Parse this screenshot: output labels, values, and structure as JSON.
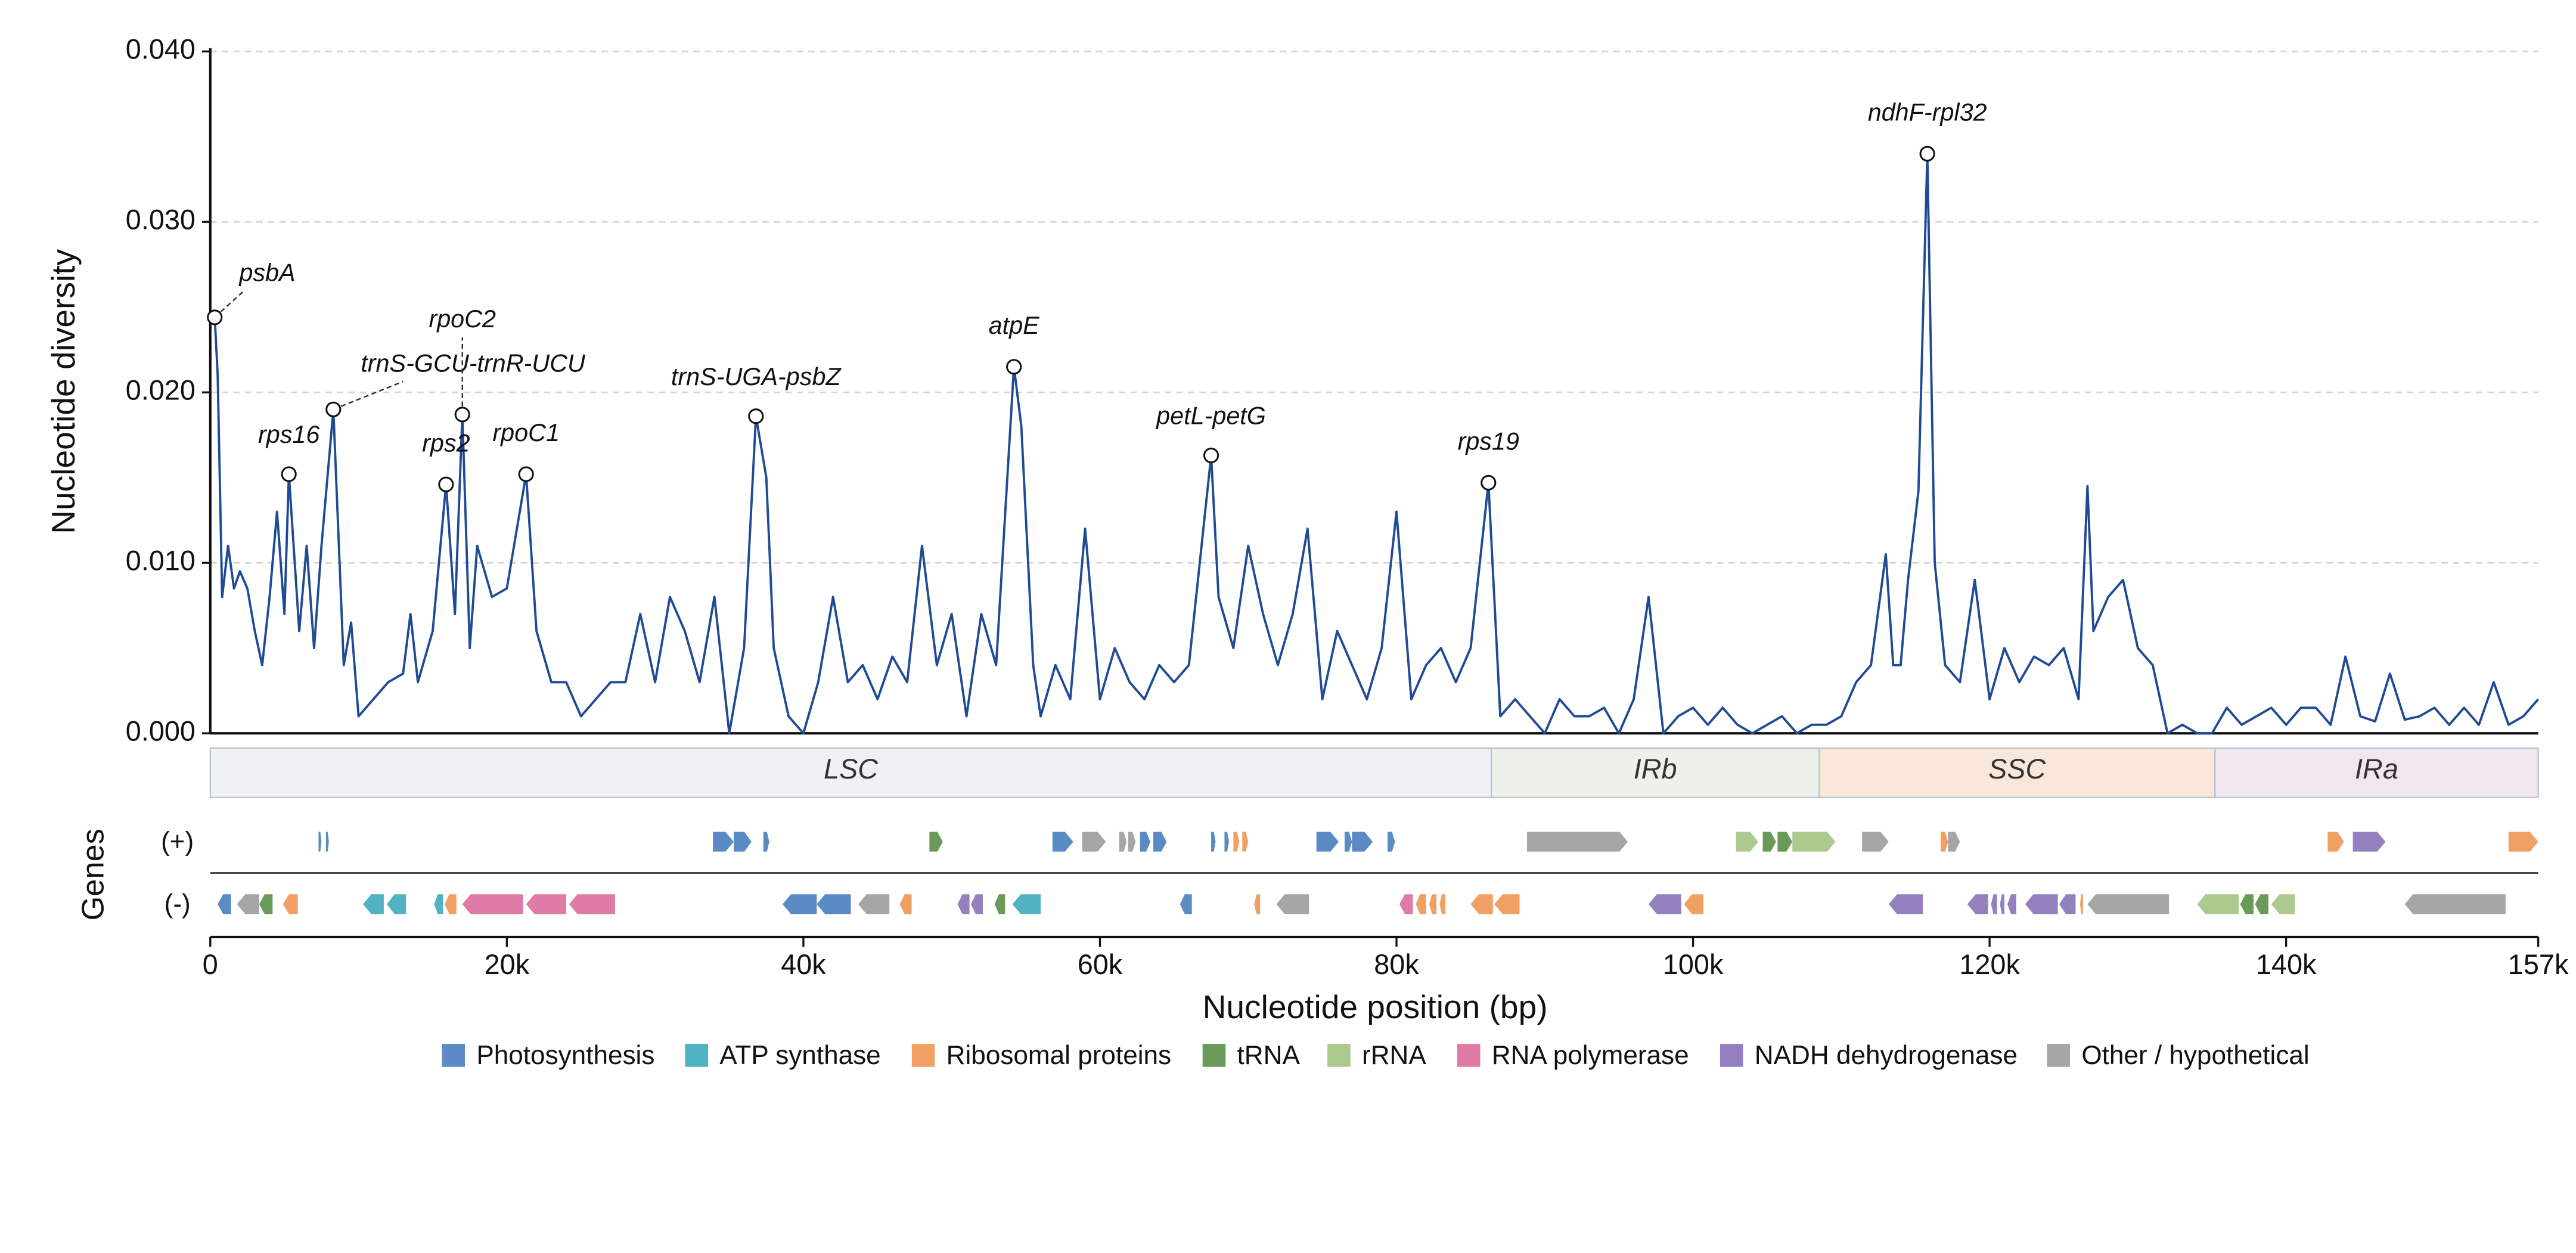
{
  "chart_data": {
    "type": "line",
    "color": "#1f4a94",
    "ylabel": "Nucleotide diversity",
    "xlabel": "Nucleotide position (bp)",
    "genes_label": "Genes",
    "strand_labels": [
      "(+)",
      "(-)"
    ],
    "xlim": [
      0,
      157000
    ],
    "ylim": [
      0,
      0.04
    ],
    "grid": true,
    "xticks": [
      0,
      {
        "value": 20000,
        "label": "20k"
      },
      {
        "value": 40000,
        "label": "40k"
      },
      {
        "value": 60000,
        "label": "60k"
      },
      {
        "value": 80000,
        "label": "80k"
      },
      {
        "value": 100000,
        "label": "100k"
      },
      {
        "value": 120000,
        "label": "120k"
      },
      {
        "value": 140000,
        "label": "140k"
      },
      {
        "value": 157000,
        "label": "157k"
      }
    ],
    "yticks": [
      {
        "value": 0,
        "label": "0.000"
      },
      {
        "value": 0.01,
        "label": "0.010"
      },
      {
        "value": 0.02,
        "label": "0.020"
      },
      {
        "value": 0.03,
        "label": "0.030"
      },
      {
        "value": 0.04,
        "label": "0.040"
      }
    ],
    "x": [
      300,
      500,
      800,
      1200,
      1600,
      2000,
      2500,
      3000,
      3500,
      4000,
      4500,
      5000,
      5300,
      6000,
      6500,
      7000,
      7500,
      8300,
      9000,
      9500,
      10000,
      11000,
      12000,
      13000,
      13500,
      14000,
      15000,
      15900,
      16500,
      17000,
      17500,
      18000,
      19000,
      20000,
      21300,
      22000,
      23000,
      24000,
      25000,
      26000,
      27000,
      28000,
      29000,
      30000,
      31000,
      32000,
      33000,
      34000,
      35000,
      36000,
      36800,
      37500,
      38000,
      39000,
      40000,
      41000,
      42000,
      43000,
      44000,
      45000,
      46000,
      47000,
      48000,
      49000,
      50000,
      51000,
      52000,
      53000,
      54200,
      54700,
      55500,
      56000,
      57000,
      58000,
      59000,
      60000,
      61000,
      62000,
      63000,
      64000,
      65000,
      66000,
      67500,
      68000,
      69000,
      70000,
      71000,
      72000,
      73000,
      74000,
      75000,
      76000,
      77000,
      78000,
      79000,
      80000,
      81000,
      82000,
      83000,
      84000,
      85000,
      86200,
      87000,
      88000,
      89000,
      90000,
      91000,
      92000,
      93000,
      94000,
      95000,
      96000,
      97000,
      98000,
      99000,
      100000,
      101000,
      102000,
      103000,
      104000,
      105000,
      106000,
      107000,
      108000,
      109000,
      110000,
      111000,
      112000,
      113000,
      113500,
      114000,
      114500,
      115200,
      115800,
      116300,
      117000,
      118000,
      119000,
      120000,
      121000,
      122000,
      123000,
      124000,
      125000,
      126000,
      126600,
      127000,
      128000,
      129000,
      130000,
      131000,
      132000,
      133000,
      134000,
      135000,
      136000,
      137000,
      138000,
      139000,
      140000,
      141000,
      142000,
      143000,
      144000,
      145000,
      146000,
      147000,
      148000,
      149000,
      150000,
      151000,
      152000,
      153000,
      154000,
      155000,
      156000,
      157000
    ],
    "values": [
      0.0244,
      0.021,
      0.008,
      0.011,
      0.0085,
      0.0095,
      0.0085,
      0.006,
      0.004,
      0.008,
      0.013,
      0.007,
      0.0152,
      0.006,
      0.011,
      0.005,
      0.011,
      0.019,
      0.004,
      0.0065,
      0.001,
      0.002,
      0.003,
      0.0035,
      0.007,
      0.003,
      0.006,
      0.0146,
      0.007,
      0.0187,
      0.005,
      0.011,
      0.008,
      0.0085,
      0.0152,
      0.006,
      0.003,
      0.003,
      0.001,
      0.002,
      0.003,
      0.003,
      0.007,
      0.003,
      0.008,
      0.006,
      0.003,
      0.008,
      0.0,
      0.005,
      0.0186,
      0.015,
      0.005,
      0.001,
      0.0,
      0.003,
      0.008,
      0.003,
      0.004,
      0.002,
      0.0045,
      0.003,
      0.011,
      0.004,
      0.007,
      0.001,
      0.007,
      0.004,
      0.0215,
      0.018,
      0.004,
      0.001,
      0.004,
      0.002,
      0.012,
      0.002,
      0.005,
      0.003,
      0.002,
      0.004,
      0.003,
      0.004,
      0.0163,
      0.008,
      0.005,
      0.011,
      0.007,
      0.004,
      0.007,
      0.012,
      0.002,
      0.006,
      0.004,
      0.002,
      0.005,
      0.013,
      0.002,
      0.004,
      0.005,
      0.003,
      0.005,
      0.0147,
      0.001,
      0.002,
      0.001,
      0.0,
      0.002,
      0.001,
      0.001,
      0.0015,
      0.0,
      0.002,
      0.008,
      0.0,
      0.001,
      0.0015,
      0.0005,
      0.0015,
      0.0005,
      0.0,
      0.0005,
      0.001,
      0.0,
      0.0005,
      0.0005,
      0.001,
      0.003,
      0.004,
      0.0105,
      0.004,
      0.004,
      0.009,
      0.0142,
      0.034,
      0.01,
      0.004,
      0.003,
      0.009,
      0.002,
      0.005,
      0.003,
      0.0045,
      0.004,
      0.005,
      0.002,
      0.0145,
      0.006,
      0.008,
      0.009,
      0.005,
      0.004,
      0.0,
      0.0005,
      0.0,
      0.0,
      0.0015,
      0.0005,
      0.001,
      0.0015,
      0.0005,
      0.0015,
      0.0015,
      0.0005,
      0.0045,
      0.001,
      0.0007,
      0.0035,
      0.0008,
      0.001,
      0.0015,
      0.0005,
      0.0015,
      0.0005,
      0.003,
      0.0005,
      0.001,
      0.002
    ],
    "annotations": [
      {
        "text": "psbA",
        "x": 300,
        "y": 0.0244
      },
      {
        "text": "rps16",
        "x": 5300,
        "y": 0.0152
      },
      {
        "text": "trnS-GCU-trnR-UCU",
        "x": 8300,
        "y": 0.019
      },
      {
        "text": "rpoC2",
        "x": 17000,
        "y": 0.0187
      },
      {
        "text": "rps2",
        "x": 15900,
        "y": 0.0146
      },
      {
        "text": "rpoC1",
        "x": 21300,
        "y": 0.0152
      },
      {
        "text": "trnS-UGA-psbZ",
        "x": 36800,
        "y": 0.0186
      },
      {
        "text": "atpE",
        "x": 54200,
        "y": 0.0215
      },
      {
        "text": "petL-petG",
        "x": 67500,
        "y": 0.0163
      },
      {
        "text": "rps19",
        "x": 86200,
        "y": 0.0147
      },
      {
        "text": "ndhF-rpl32",
        "x": 115800,
        "y": 0.034
      }
    ],
    "regions": [
      {
        "name": "LSC",
        "start": 0,
        "end": 86400,
        "color": "#eef2f5"
      },
      {
        "name": "IRb",
        "start": 86400,
        "end": 108500,
        "color": "#ecf2ea"
      },
      {
        "name": "SSC",
        "start": 108500,
        "end": 135200,
        "color": "#f9e8d9"
      },
      {
        "name": "IRa",
        "start": 135200,
        "end": 157000,
        "color": "#f1e6f0"
      }
    ],
    "categories": [
      {
        "name": "Photosynthesis",
        "color": "#5b8bc5"
      },
      {
        "name": "ATP synthase",
        "color": "#4fb3c2"
      },
      {
        "name": "Ribosomal proteins",
        "color": "#f0a063"
      },
      {
        "name": "tRNA",
        "color": "#6a9a58"
      },
      {
        "name": "rRNA",
        "color": "#acc98e"
      },
      {
        "name": "RNA polymerase",
        "color": "#e07aa6"
      },
      {
        "name": "NADH dehydrogenase",
        "color": "#9580bf"
      },
      {
        "name": "Other / hypothetical",
        "color": "#a6a6a6"
      }
    ],
    "genes": {
      "plus": [
        [
          7300,
          7500,
          0
        ],
        [
          7800,
          8000,
          0
        ],
        [
          33900,
          35300,
          0
        ],
        [
          35300,
          36500,
          0
        ],
        [
          37300,
          37700,
          0
        ],
        [
          48500,
          49400,
          3
        ],
        [
          56800,
          58200,
          0
        ],
        [
          58800,
          60400,
          7
        ],
        [
          61300,
          61800,
          7
        ],
        [
          61900,
          62400,
          7
        ],
        [
          62700,
          63400,
          0
        ],
        [
          63600,
          64500,
          0
        ],
        [
          67500,
          67800,
          0
        ],
        [
          68400,
          68700,
          0
        ],
        [
          69000,
          69400,
          2
        ],
        [
          69600,
          70000,
          2
        ],
        [
          74600,
          76100,
          0
        ],
        [
          76500,
          77000,
          0
        ],
        [
          77000,
          78400,
          0
        ],
        [
          79400,
          79900,
          0
        ],
        [
          88800,
          95600,
          7
        ],
        [
          102900,
          104400,
          4
        ],
        [
          104700,
          105600,
          3
        ],
        [
          105700,
          106700,
          3
        ],
        [
          106700,
          109600,
          4
        ],
        [
          111400,
          113200,
          7
        ],
        [
          116700,
          117200,
          2
        ],
        [
          117200,
          118000,
          7
        ],
        [
          142800,
          143900,
          2
        ],
        [
          144500,
          146700,
          6
        ],
        [
          155000,
          157000,
          2
        ]
      ],
      "minus": [
        [
          500,
          1400,
          0
        ],
        [
          1800,
          3300,
          7
        ],
        [
          3300,
          4200,
          3
        ],
        [
          4900,
          5900,
          2
        ],
        [
          10300,
          11700,
          1
        ],
        [
          11900,
          13200,
          1
        ],
        [
          15100,
          15700,
          1
        ],
        [
          15800,
          16600,
          2
        ],
        [
          17000,
          21100,
          5
        ],
        [
          21300,
          24000,
          5
        ],
        [
          24200,
          27300,
          5
        ],
        [
          38600,
          40900,
          0
        ],
        [
          40900,
          43200,
          0
        ],
        [
          43700,
          45800,
          7
        ],
        [
          46500,
          47300,
          2
        ],
        [
          50400,
          51200,
          6
        ],
        [
          51300,
          52100,
          6
        ],
        [
          52900,
          53600,
          3
        ],
        [
          54100,
          56000,
          1
        ],
        [
          65400,
          66200,
          0
        ],
        [
          70400,
          70800,
          2
        ],
        [
          71900,
          74100,
          7
        ],
        [
          80200,
          81100,
          5
        ],
        [
          81300,
          82000,
          2
        ],
        [
          82200,
          82700,
          2
        ],
        [
          82900,
          83300,
          2
        ],
        [
          85000,
          86500,
          2
        ],
        [
          86600,
          88300,
          2
        ],
        [
          97000,
          99200,
          6
        ],
        [
          99400,
          100700,
          2
        ],
        [
          113200,
          115500,
          6
        ],
        [
          118500,
          119900,
          6
        ],
        [
          120100,
          120500,
          6
        ],
        [
          120700,
          121000,
          6
        ],
        [
          121200,
          121800,
          6
        ],
        [
          122400,
          124600,
          6
        ],
        [
          124700,
          125800,
          6
        ],
        [
          126100,
          126300,
          2
        ],
        [
          126600,
          132100,
          7
        ],
        [
          134000,
          136800,
          4
        ],
        [
          136900,
          137800,
          3
        ],
        [
          137900,
          138800,
          3
        ],
        [
          139000,
          140600,
          4
        ],
        [
          148000,
          154800,
          7
        ]
      ]
    }
  }
}
